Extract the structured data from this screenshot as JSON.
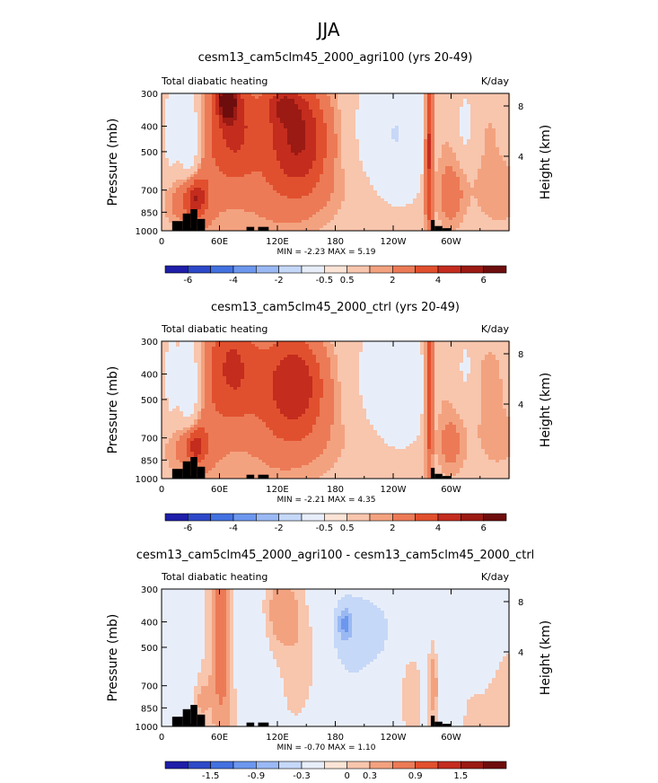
{
  "figure": {
    "title": "JJA"
  },
  "colors": {
    "palette": [
      "#1e1ea8",
      "#2d49c9",
      "#4371e0",
      "#6d97ee",
      "#9ab9f4",
      "#c6d8f8",
      "#e8eef9",
      "#fbe4d6",
      "#f8c5ad",
      "#f3a27f",
      "#ec7a56",
      "#e1502e",
      "#c42c1e",
      "#9b1a14",
      "#6e0d0d"
    ],
    "land": "#000000"
  },
  "chart_data": [
    {
      "type": "heatmap",
      "title": "cesm13_cam5clm45_2000_agri100 (yrs 20-49)",
      "left_label": "Total diabatic heating",
      "right_label": "K/day",
      "ylabel": "Pressure (mb)",
      "ylabel_right": "Height (km)",
      "y_ticks": [
        "300",
        "400",
        "500",
        "700",
        "850",
        "1000"
      ],
      "y_right_ticks": [
        "8",
        "4"
      ],
      "x_ticks": [
        "0",
        "60E",
        "120E",
        "180",
        "120W",
        "60W"
      ],
      "stats": "MIN =   -2.23   MAX =    5.19",
      "colorbar_labels": [
        "-6",
        "-4",
        "-2",
        "-0.5",
        "0.5",
        "2",
        "4",
        "6"
      ],
      "xlim": [
        0,
        360
      ],
      "ylim": [
        1000,
        300
      ],
      "features": [
        {
          "lon": 10,
          "p": 480,
          "dlon": 5,
          "dp": 160,
          "value": -1.2
        },
        {
          "lon": 30,
          "p": 540,
          "dlon": 8,
          "dp": 260,
          "value": -2.0
        },
        {
          "lon": 20,
          "p": 850,
          "dlon": 12,
          "dp": 90,
          "value": 1.5
        },
        {
          "lon": 35,
          "p": 830,
          "dlon": 8,
          "dp": 80,
          "value": 3.5
        },
        {
          "lon": 48,
          "p": 560,
          "dlon": 14,
          "dp": 400,
          "value": 1.2
        },
        {
          "lon": 75,
          "p": 430,
          "dlon": 14,
          "dp": 220,
          "value": 2.5
        },
        {
          "lon": 68,
          "p": 340,
          "dlon": 6,
          "dp": 60,
          "value": 5.0
        },
        {
          "lon": 100,
          "p": 560,
          "dlon": 30,
          "dp": 330,
          "value": 1.2
        },
        {
          "lon": 145,
          "p": 500,
          "dlon": 22,
          "dp": 200,
          "value": 3.0
        },
        {
          "lon": 140,
          "p": 660,
          "dlon": 30,
          "dp": 250,
          "value": 1.0
        },
        {
          "lon": 125,
          "p": 360,
          "dlon": 12,
          "dp": 60,
          "value": 2.0
        },
        {
          "lon": 185,
          "p": 820,
          "dlon": 40,
          "dp": 110,
          "value": 0.3
        },
        {
          "lon": 245,
          "p": 520,
          "dlon": 24,
          "dp": 230,
          "value": -1.5
        },
        {
          "lon": 230,
          "p": 460,
          "dlon": 30,
          "dp": 260,
          "value": -0.6
        },
        {
          "lon": 277,
          "p": 550,
          "dlon": 3,
          "dp": 380,
          "value": 3.5
        },
        {
          "lon": 290,
          "p": 500,
          "dlon": 10,
          "dp": 250,
          "value": 0.7
        },
        {
          "lon": 300,
          "p": 820,
          "dlon": 10,
          "dp": 120,
          "value": 1.5
        },
        {
          "lon": 315,
          "p": 450,
          "dlon": 5,
          "dp": 110,
          "value": -1.2
        },
        {
          "lon": 340,
          "p": 480,
          "dlon": 18,
          "dp": 200,
          "value": 0.5
        },
        {
          "lon": 350,
          "p": 820,
          "dlon": 20,
          "dp": 120,
          "value": 0.8
        }
      ]
    },
    {
      "type": "heatmap",
      "title": "cesm13_cam5clm45_2000_ctrl (yrs 20-49)",
      "left_label": "Total diabatic heating",
      "right_label": "K/day",
      "ylabel": "Pressure (mb)",
      "ylabel_right": "Height (km)",
      "y_ticks": [
        "300",
        "400",
        "500",
        "700",
        "850",
        "1000"
      ],
      "y_right_ticks": [
        "8",
        "4"
      ],
      "x_ticks": [
        "0",
        "60E",
        "120E",
        "180",
        "120W",
        "60W"
      ],
      "stats": "MIN =   -2.21   MAX =    4.35",
      "colorbar_labels": [
        "-6",
        "-4",
        "-2",
        "-0.5",
        "0.5",
        "2",
        "4",
        "6"
      ],
      "xlim": [
        0,
        360
      ],
      "ylim": [
        1000,
        300
      ],
      "features": [
        {
          "lon": 10,
          "p": 480,
          "dlon": 5,
          "dp": 160,
          "value": -1.0
        },
        {
          "lon": 30,
          "p": 540,
          "dlon": 8,
          "dp": 260,
          "value": -2.0
        },
        {
          "lon": 20,
          "p": 850,
          "dlon": 12,
          "dp": 90,
          "value": 1.2
        },
        {
          "lon": 35,
          "p": 830,
          "dlon": 8,
          "dp": 80,
          "value": 3.2
        },
        {
          "lon": 50,
          "p": 560,
          "dlon": 16,
          "dp": 400,
          "value": 1.2
        },
        {
          "lon": 75,
          "p": 420,
          "dlon": 16,
          "dp": 200,
          "value": 2.2
        },
        {
          "lon": 105,
          "p": 560,
          "dlon": 30,
          "dp": 330,
          "value": 1.2
        },
        {
          "lon": 140,
          "p": 500,
          "dlon": 22,
          "dp": 180,
          "value": 2.5
        },
        {
          "lon": 145,
          "p": 660,
          "dlon": 30,
          "dp": 250,
          "value": 1.0
        },
        {
          "lon": 190,
          "p": 820,
          "dlon": 40,
          "dp": 110,
          "value": 0.3
        },
        {
          "lon": 245,
          "p": 540,
          "dlon": 26,
          "dp": 240,
          "value": -1.0
        },
        {
          "lon": 232,
          "p": 470,
          "dlon": 32,
          "dp": 270,
          "value": -0.5
        },
        {
          "lon": 277,
          "p": 520,
          "dlon": 3,
          "dp": 380,
          "value": 3.0
        },
        {
          "lon": 290,
          "p": 500,
          "dlon": 10,
          "dp": 250,
          "value": 0.7
        },
        {
          "lon": 300,
          "p": 830,
          "dlon": 10,
          "dp": 110,
          "value": 1.3
        },
        {
          "lon": 315,
          "p": 430,
          "dlon": 5,
          "dp": 100,
          "value": -1.0
        },
        {
          "lon": 340,
          "p": 480,
          "dlon": 18,
          "dp": 200,
          "value": 0.6
        },
        {
          "lon": 350,
          "p": 820,
          "dlon": 20,
          "dp": 120,
          "value": 0.6
        }
      ]
    },
    {
      "type": "heatmap",
      "title": "cesm13_cam5clm45_2000_agri100 - cesm13_cam5clm45_2000_ctrl",
      "left_label": "Total diabatic heating",
      "right_label": "K/day",
      "ylabel": "Pressure (mb)",
      "ylabel_right": "Height (km)",
      "y_ticks": [
        "300",
        "400",
        "500",
        "700",
        "850",
        "1000"
      ],
      "y_right_ticks": [
        "8",
        "4"
      ],
      "x_ticks": [
        "0",
        "60E",
        "120E",
        "180",
        "120W",
        "60W"
      ],
      "stats": "MIN =   -0.70   MAX =    1.10",
      "colorbar_labels": [
        "-1.5",
        "-0.9",
        "-0.3",
        "0",
        "0.3",
        "0.9",
        "1.5"
      ],
      "xlim": [
        0,
        360
      ],
      "ylim": [
        1000,
        300
      ],
      "features": [
        {
          "lon": 12,
          "p": 500,
          "dlon": 8,
          "dp": 300,
          "value": -0.12
        },
        {
          "lon": 30,
          "p": 500,
          "dlon": 6,
          "dp": 300,
          "value": -0.25
        },
        {
          "lon": 40,
          "p": 860,
          "dlon": 8,
          "dp": 100,
          "value": 0.15
        },
        {
          "lon": 62,
          "p": 520,
          "dlon": 6,
          "dp": 320,
          "value": 0.6
        },
        {
          "lon": 95,
          "p": 520,
          "dlon": 15,
          "dp": 250,
          "value": -0.1
        },
        {
          "lon": 125,
          "p": 420,
          "dlon": 12,
          "dp": 120,
          "value": 0.25
        },
        {
          "lon": 150,
          "p": 620,
          "dlon": 12,
          "dp": 160,
          "value": 0.12
        },
        {
          "lon": 195,
          "p": 540,
          "dlon": 25,
          "dp": 280,
          "value": -0.35
        },
        {
          "lon": 190,
          "p": 480,
          "dlon": 5,
          "dp": 60,
          "value": -0.7
        },
        {
          "lon": 235,
          "p": 500,
          "dlon": 20,
          "dp": 200,
          "value": -0.2
        },
        {
          "lon": 255,
          "p": 720,
          "dlon": 8,
          "dp": 140,
          "value": 0.1
        },
        {
          "lon": 282,
          "p": 780,
          "dlon": 3,
          "dp": 120,
          "value": 0.25
        },
        {
          "lon": 296,
          "p": 600,
          "dlon": 8,
          "dp": 250,
          "value": -0.2
        },
        {
          "lon": 310,
          "p": 520,
          "dlon": 8,
          "dp": 200,
          "value": -0.2
        },
        {
          "lon": 332,
          "p": 580,
          "dlon": 8,
          "dp": 160,
          "value": -0.25
        },
        {
          "lon": 350,
          "p": 400,
          "dlon": 10,
          "dp": 80,
          "value": -0.15
        },
        {
          "lon": 345,
          "p": 880,
          "dlon": 20,
          "dp": 100,
          "value": 0.1
        }
      ]
    }
  ]
}
